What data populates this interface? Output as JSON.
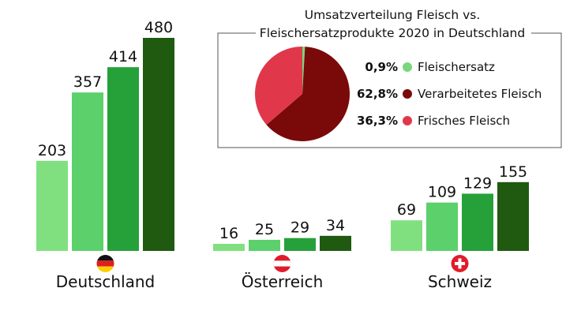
{
  "chart_data": [
    {
      "type": "bar",
      "categories": [
        "Deutschland",
        "Österreich",
        "Schweiz"
      ],
      "series": [
        {
          "values": [
            203,
            16,
            69
          ],
          "color": "#80e080"
        },
        {
          "values": [
            357,
            25,
            109
          ],
          "color": "#5cd06a"
        },
        {
          "values": [
            414,
            29,
            129
          ],
          "color": "#26a13a"
        },
        {
          "values": [
            480,
            34,
            155
          ],
          "color": "#1f5a10"
        }
      ],
      "flags": [
        "germany-flag-icon",
        "austria-flag-icon",
        "switzerland-flag-icon"
      ],
      "ylim": [
        0,
        480
      ]
    },
    {
      "type": "pie",
      "title": "Umsatzverteilung Fleisch vs. Fleischersatzprodukte 2020 in Deutschland",
      "title_lines": [
        "Umsatzverteilung Fleisch vs.",
        "Fleischersatzprodukte 2020 in Deutschland"
      ],
      "slices": [
        {
          "label": "Fleischersatz",
          "value": 0.9,
          "display": "0,9%",
          "color": "#7ad67a"
        },
        {
          "label": "Verarbeitetes Fleisch",
          "value": 62.8,
          "display": "62,8%",
          "color": "#7a0a0a"
        },
        {
          "label": "Frisches Fleisch",
          "value": 36.3,
          "display": "36,3%",
          "color": "#e0384a"
        }
      ]
    }
  ]
}
